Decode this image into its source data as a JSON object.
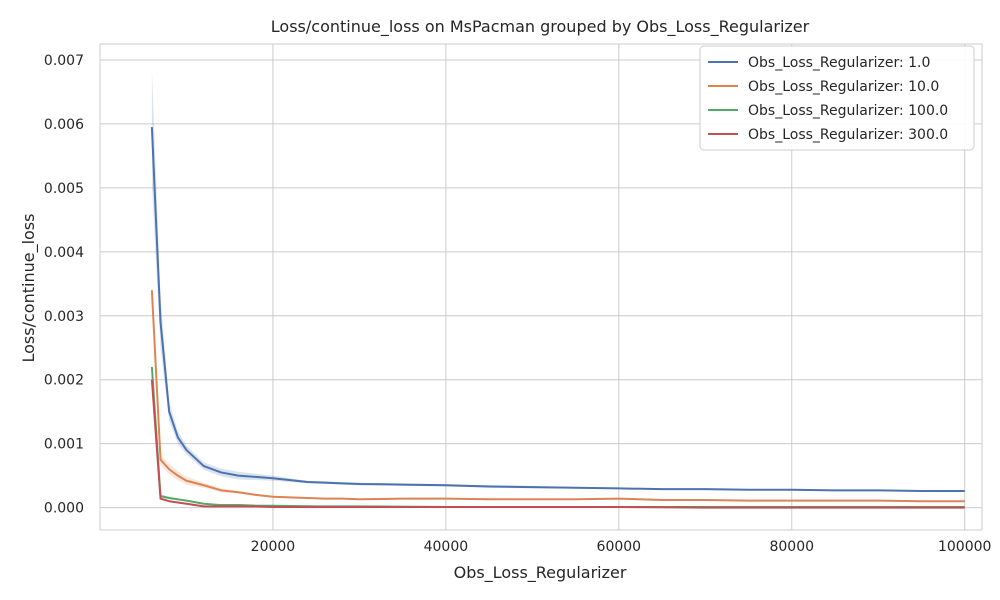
{
  "chart_data": {
    "type": "line",
    "title": "Loss/continue_loss on MsPacman grouped by Obs_Loss_Regularizer",
    "xlabel": "Obs_Loss_Regularizer",
    "ylabel": "Loss/continue_loss",
    "xlim": [
      0,
      102000
    ],
    "ylim": [
      -0.00035,
      0.00725
    ],
    "xticks": [
      20000,
      40000,
      60000,
      80000,
      100000
    ],
    "xtick_labels": [
      "20000",
      "40000",
      "60000",
      "80000",
      "100000"
    ],
    "yticks": [
      0.0,
      0.001,
      0.002,
      0.003,
      0.004,
      0.005,
      0.006,
      0.007
    ],
    "ytick_labels": [
      "0.000",
      "0.001",
      "0.002",
      "0.003",
      "0.004",
      "0.005",
      "0.006",
      "0.007"
    ],
    "grid": true,
    "legend_position": "top-right",
    "series": [
      {
        "name": "Obs_Loss_Regularizer: 1.0",
        "color": "#4c72b0",
        "x": [
          6000,
          7000,
          8000,
          9000,
          10000,
          12000,
          14000,
          16000,
          18000,
          20000,
          22000,
          24000,
          26000,
          28000,
          30000,
          35000,
          40000,
          45000,
          50000,
          55000,
          60000,
          65000,
          70000,
          75000,
          80000,
          85000,
          90000,
          95000,
          100000
        ],
        "y": [
          0.00595,
          0.0029,
          0.0015,
          0.0011,
          0.0009,
          0.00065,
          0.00055,
          0.0005,
          0.00048,
          0.00046,
          0.00043,
          0.0004,
          0.00039,
          0.00038,
          0.00037,
          0.00036,
          0.00035,
          0.00033,
          0.00032,
          0.00031,
          0.0003,
          0.00029,
          0.00029,
          0.00028,
          0.00028,
          0.00027,
          0.00027,
          0.00026,
          0.00026
        ],
        "band": [
          0.0009,
          0.0004,
          0.00015,
          0.0001,
          7e-05,
          6e-05,
          6e-05,
          6e-05,
          5e-05,
          4e-05,
          3e-05,
          2e-05,
          2e-05,
          2e-05,
          2e-05,
          2e-05,
          2e-05,
          2e-05,
          2e-05,
          1e-05,
          1e-05,
          1e-05,
          1e-05,
          1e-05,
          1e-05,
          1e-05,
          1e-05,
          1e-05,
          1e-05
        ]
      },
      {
        "name": "Obs_Loss_Regularizer: 10.0",
        "color": "#dd8452",
        "x": [
          6000,
          7000,
          8000,
          9000,
          10000,
          12000,
          14000,
          16000,
          18000,
          20000,
          22000,
          24000,
          26000,
          28000,
          30000,
          35000,
          40000,
          45000,
          50000,
          55000,
          60000,
          65000,
          70000,
          75000,
          80000,
          85000,
          90000,
          95000,
          100000
        ],
        "y": [
          0.0034,
          0.00075,
          0.0006,
          0.0005,
          0.00042,
          0.00035,
          0.00027,
          0.00024,
          0.0002,
          0.00017,
          0.00016,
          0.00015,
          0.00014,
          0.00014,
          0.00013,
          0.00014,
          0.00014,
          0.00013,
          0.00013,
          0.00013,
          0.00014,
          0.00012,
          0.00012,
          0.00011,
          0.00011,
          0.00011,
          0.00011,
          0.0001,
          0.0001
        ],
        "band": [
          5e-05,
          8e-05,
          8e-05,
          7e-05,
          6e-05,
          4e-05,
          3e-05,
          2e-05,
          2e-05,
          1e-05,
          1e-05,
          1e-05,
          1e-05,
          1e-05,
          1e-05,
          1e-05,
          1e-05,
          1e-05,
          1e-05,
          1e-05,
          1e-05,
          1e-05,
          1e-05,
          1e-05,
          1e-05,
          1e-05,
          1e-05,
          1e-05,
          1e-05
        ]
      },
      {
        "name": "Obs_Loss_Regularizer: 100.0",
        "color": "#55a868",
        "x": [
          6000,
          7000,
          8000,
          9000,
          10000,
          12000,
          14000,
          16000,
          18000,
          20000,
          25000,
          30000,
          40000,
          50000,
          60000,
          70000,
          80000,
          90000,
          100000
        ],
        "y": [
          0.0022,
          0.00018,
          0.00015,
          0.00013,
          0.00011,
          6e-05,
          4e-05,
          4e-05,
          3e-05,
          3e-05,
          2e-05,
          2e-05,
          1e-05,
          1e-05,
          1e-05,
          1e-05,
          1e-05,
          1e-05,
          1e-05
        ],
        "band": [
          5e-05,
          3e-05,
          2e-05,
          2e-05,
          1e-05,
          1e-05,
          1e-05,
          1e-05,
          1e-05,
          1e-05,
          1e-05,
          1e-05,
          1e-05,
          1e-05,
          1e-05,
          1e-05,
          1e-05,
          1e-05,
          1e-05
        ]
      },
      {
        "name": "Obs_Loss_Regularizer: 300.0",
        "color": "#c44e52",
        "x": [
          6000,
          7000,
          8000,
          9000,
          10000,
          12000,
          14000,
          16000,
          18000,
          20000,
          25000,
          30000,
          40000,
          50000,
          60000,
          70000,
          80000,
          90000,
          100000
        ],
        "y": [
          0.002,
          0.00014,
          0.0001,
          8e-05,
          6e-05,
          2e-05,
          2e-05,
          2e-05,
          2e-05,
          1e-05,
          1e-05,
          1e-05,
          1e-05,
          1e-05,
          1e-05,
          0.0,
          0.0,
          0.0,
          0.0
        ],
        "band": [
          5e-05,
          2e-05,
          1e-05,
          1e-05,
          1e-05,
          1e-05,
          1e-05,
          1e-05,
          1e-05,
          1e-05,
          1e-05,
          1e-05,
          1e-05,
          1e-05,
          1e-05,
          1e-05,
          1e-05,
          1e-05,
          1e-05
        ]
      }
    ]
  }
}
